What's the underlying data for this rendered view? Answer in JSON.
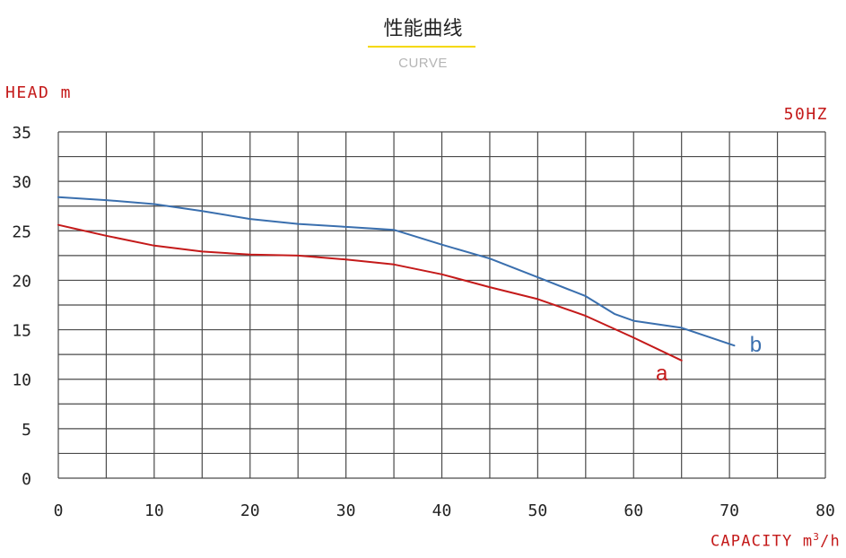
{
  "header": {
    "title": "性能曲线",
    "subtitle": "CURVE"
  },
  "labels": {
    "head": "HEAD  m",
    "frequency": "50HZ",
    "capacity_prefix": "CAPACITY m",
    "capacity_sup": "3",
    "capacity_suffix": "/h"
  },
  "colors": {
    "grid": "#4a4a4a",
    "curve_a": "#c41a1a",
    "curve_b": "#3a6fae",
    "accent_underline": "#f5d800"
  },
  "chart_data": {
    "type": "line",
    "title": "性能曲线",
    "subtitle": "CURVE",
    "xlabel": "CAPACITY m³/h",
    "ylabel": "HEAD m",
    "xlim": [
      0,
      80
    ],
    "ylim": [
      0,
      35
    ],
    "x_ticks": [
      0,
      10,
      20,
      30,
      40,
      50,
      60,
      70,
      80
    ],
    "y_ticks": [
      0,
      5,
      10,
      15,
      20,
      25,
      30,
      35
    ],
    "grid": true,
    "annotations": [
      "50HZ"
    ],
    "series": [
      {
        "name": "a",
        "color": "#c41a1a",
        "points": [
          [
            0,
            25.6
          ],
          [
            5,
            24.5
          ],
          [
            10,
            23.5
          ],
          [
            15,
            22.9
          ],
          [
            20,
            22.6
          ],
          [
            25,
            22.5
          ],
          [
            30,
            22.1
          ],
          [
            35,
            21.6
          ],
          [
            40,
            20.6
          ],
          [
            45,
            19.3
          ],
          [
            50,
            18.1
          ],
          [
            55,
            16.4
          ],
          [
            60,
            14.2
          ],
          [
            65,
            11.9
          ]
        ]
      },
      {
        "name": "b",
        "color": "#3a6fae",
        "points": [
          [
            0,
            28.4
          ],
          [
            5,
            28.1
          ],
          [
            10,
            27.7
          ],
          [
            15,
            27.0
          ],
          [
            20,
            26.2
          ],
          [
            25,
            25.7
          ],
          [
            30,
            25.4
          ],
          [
            35,
            25.1
          ],
          [
            40,
            23.6
          ],
          [
            45,
            22.2
          ],
          [
            50,
            20.3
          ],
          [
            55,
            18.4
          ],
          [
            58,
            16.6
          ],
          [
            60,
            15.9
          ],
          [
            65,
            15.2
          ],
          [
            70.5,
            13.4
          ]
        ]
      }
    ]
  }
}
